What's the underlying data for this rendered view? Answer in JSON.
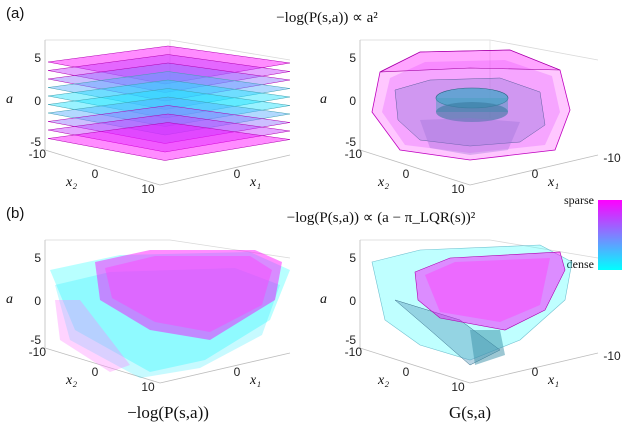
{
  "panel_labels": {
    "a": "(a)",
    "b": "(b)"
  },
  "titles": {
    "a": "−log(P(s,a)) ∝ a²",
    "b": "−log(P(s,a)) ∝ (a − π_LQR(s))²"
  },
  "column_labels": {
    "left": "−log(P(s,a))",
    "right": "G(s,a)"
  },
  "colorbar": {
    "top_label": "sparse",
    "bottom_label": "dense",
    "colors": [
      "#ff00ff",
      "#00ffff"
    ]
  },
  "axes": {
    "a_label": "a",
    "x1_label": "x₁",
    "x2_label": "x₂"
  },
  "chart_data": [
    {
      "type": "area",
      "panel": "(a) left",
      "surfaces": "stacked level-sets of −log(P(s,a)) ∝ a² (flat planes in a)",
      "zlim": [
        -5,
        5
      ],
      "x1lim": [
        -10,
        10
      ],
      "x2lim": [
        -10,
        10
      ],
      "z_ticks": [
        "5",
        "0",
        "-5"
      ],
      "x2_ticks": [
        "-10",
        "0",
        "10"
      ],
      "x1_ticks": [
        "0"
      ]
    },
    {
      "type": "area",
      "panel": "(a) right",
      "surfaces": "level-sets of G(s,a)",
      "zlim": [
        -5,
        5
      ],
      "x1lim": [
        -10,
        10
      ],
      "x2lim": [
        -10,
        10
      ],
      "z_ticks": [
        "5",
        "0",
        "-5"
      ],
      "x2_ticks": [
        "-10",
        "0",
        "10"
      ],
      "x1_ticks": [
        "0",
        "-10"
      ]
    },
    {
      "type": "area",
      "panel": "(b) left",
      "surfaces": "level-sets of −log(P(s,a)) ∝ (a − π_LQR(s))²",
      "zlim": [
        -5,
        5
      ],
      "x1lim": [
        -10,
        10
      ],
      "x2lim": [
        -10,
        10
      ],
      "z_ticks": [
        "5",
        "0",
        "-5"
      ],
      "x2_ticks": [
        "-10",
        "0",
        "10"
      ],
      "x1_ticks": [
        "0"
      ]
    },
    {
      "type": "area",
      "panel": "(b) right",
      "surfaces": "level-sets of G(s,a)",
      "zlim": [
        -5,
        5
      ],
      "x1lim": [
        -10,
        10
      ],
      "x2lim": [
        -10,
        10
      ],
      "z_ticks": [
        "5",
        "0",
        "-5"
      ],
      "x2_ticks": [
        "-10",
        "0",
        "10"
      ],
      "x1_ticks": [
        "0",
        "-10"
      ]
    }
  ]
}
